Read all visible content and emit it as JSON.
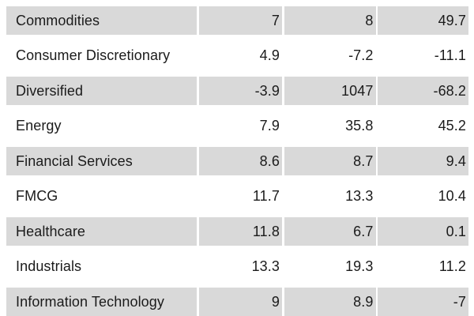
{
  "table": {
    "rows": [
      {
        "label": "Commodities",
        "values": [
          "7",
          "8",
          "49.7"
        ]
      },
      {
        "label": "Consumer Discretionary",
        "values": [
          "4.9",
          "-7.2",
          "-11.1"
        ]
      },
      {
        "label": "Diversified",
        "values": [
          "-3.9",
          "1047",
          "-68.2"
        ]
      },
      {
        "label": "Energy",
        "values": [
          "7.9",
          "35.8",
          "45.2"
        ]
      },
      {
        "label": "Financial Services",
        "values": [
          "8.6",
          "8.7",
          "9.4"
        ]
      },
      {
        "label": "FMCG",
        "values": [
          "11.7",
          "13.3",
          "10.4"
        ]
      },
      {
        "label": "Healthcare",
        "values": [
          "11.8",
          "6.7",
          "0.1"
        ]
      },
      {
        "label": "Industrials",
        "values": [
          "13.3",
          "19.3",
          "11.2"
        ]
      },
      {
        "label": "Information Technology",
        "values": [
          "9",
          "8.9",
          "-7"
        ]
      }
    ],
    "colors": {
      "row_alt_bg": "#d9d9d9",
      "row_bg": "#ffffff",
      "text": "#1b1b1b"
    }
  },
  "chart_data": {
    "type": "table",
    "title": "",
    "categories": [
      "Commodities",
      "Consumer Discretionary",
      "Diversified",
      "Energy",
      "Financial Services",
      "FMCG",
      "Healthcare",
      "Industrials",
      "Information Technology"
    ],
    "series": [
      {
        "name": "column_1",
        "values": [
          7,
          4.9,
          -3.9,
          7.9,
          8.6,
          11.7,
          11.8,
          13.3,
          9
        ]
      },
      {
        "name": "column_2",
        "values": [
          8,
          -7.2,
          1047,
          35.8,
          8.7,
          13.3,
          6.7,
          19.3,
          8.9
        ]
      },
      {
        "name": "column_3",
        "values": [
          49.7,
          -11.1,
          -68.2,
          45.2,
          9.4,
          10.4,
          0.1,
          11.2,
          -7
        ]
      }
    ],
    "layout_hints": {
      "zebra_striping": true,
      "stripe_color": "#d9d9d9",
      "numeric_alignment": "right",
      "header_visible": false,
      "last_row_clipped": true
    }
  }
}
